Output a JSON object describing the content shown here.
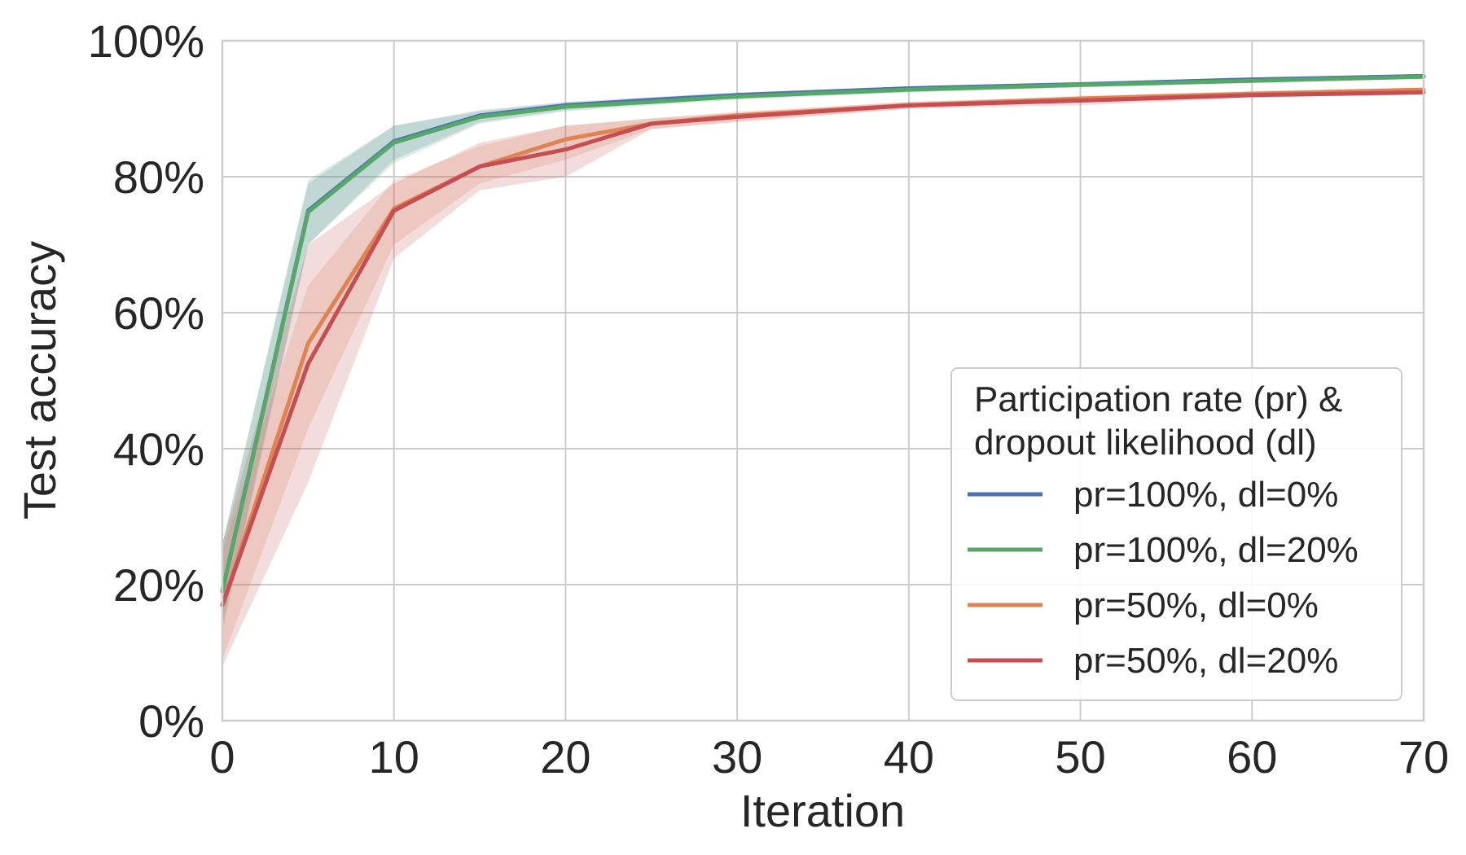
{
  "chart_data": {
    "type": "line",
    "title": "",
    "xlabel": "Iteration",
    "ylabel": "Test accuracy",
    "xlim": [
      0,
      70
    ],
    "ylim": [
      0,
      100
    ],
    "xticks": [
      0,
      10,
      20,
      30,
      40,
      50,
      60,
      70
    ],
    "xtick_labels": [
      "0",
      "10",
      "20",
      "30",
      "40",
      "50",
      "60",
      "70"
    ],
    "yticks": [
      0,
      20,
      40,
      60,
      80,
      100
    ],
    "ytick_labels": [
      "0%",
      "20%",
      "40%",
      "60%",
      "80%",
      "100%"
    ],
    "grid": true,
    "legend": {
      "title_lines": [
        "Participation rate (pr) &",
        "dropout likelihood (dl)"
      ],
      "placement": "lower-right"
    },
    "series": [
      {
        "name": "pr=100%, dl=0%",
        "color": "#4c72b0",
        "x": [
          0,
          5,
          10,
          15,
          20,
          25,
          30,
          40,
          50,
          60,
          70
        ],
        "y": [
          19,
          75,
          85.2,
          89,
          90.5,
          91.3,
          92,
          93,
          93.6,
          94.3,
          94.8
        ],
        "band_lower": [
          14,
          70,
          82.5,
          88,
          89.8,
          90.8,
          91.5,
          92.6,
          93.2,
          94,
          94.5
        ],
        "band_upper": [
          26,
          79,
          87.5,
          89.8,
          91,
          91.7,
          92.4,
          93.3,
          93.9,
          94.6,
          95.1
        ]
      },
      {
        "name": "pr=100%, dl=20%",
        "color": "#55a868",
        "x": [
          0,
          5,
          10,
          15,
          20,
          25,
          30,
          40,
          50,
          60,
          70
        ],
        "y": [
          19,
          74.8,
          85,
          88.8,
          90.3,
          91,
          91.8,
          92.8,
          93.5,
          94.1,
          94.7
        ],
        "band_lower": [
          13,
          70,
          82,
          87.8,
          89.6,
          90.5,
          91.3,
          92.4,
          93.1,
          93.8,
          94.4
        ],
        "band_upper": [
          26,
          79.5,
          87.5,
          89.6,
          90.9,
          91.5,
          92.2,
          93.2,
          93.8,
          94.4,
          95
        ]
      },
      {
        "name": "pr=50%, dl=0%",
        "color": "#dd8452",
        "x": [
          0,
          5,
          10,
          15,
          20,
          25,
          30,
          40,
          50,
          60,
          70
        ],
        "y": [
          17,
          55.5,
          75.3,
          81.5,
          85.5,
          87.8,
          89,
          90.5,
          91.5,
          92.2,
          92.8
        ],
        "band_lower": [
          9,
          43,
          70,
          79,
          82.5,
          87,
          88.2,
          90,
          91,
          91.8,
          92.5
        ],
        "band_upper": [
          25,
          64,
          79.5,
          84.5,
          87.5,
          88.5,
          89.6,
          91,
          91.9,
          92.6,
          93.1
        ]
      },
      {
        "name": "pr=50%, dl=20%",
        "color": "#c44e52",
        "x": [
          0,
          5,
          10,
          15,
          20,
          25,
          30,
          40,
          50,
          60,
          70
        ],
        "y": [
          17,
          52.5,
          75,
          81.5,
          84,
          87.8,
          88.8,
          90.5,
          91.2,
          92,
          92.4
        ],
        "band_lower": [
          8,
          35,
          68,
          78,
          80,
          87,
          88,
          90,
          90.5,
          91.6,
          92.1
        ],
        "band_upper": [
          26,
          70,
          79,
          85,
          87.5,
          88.6,
          89.4,
          91,
          91.7,
          92.4,
          92.8
        ]
      }
    ]
  }
}
